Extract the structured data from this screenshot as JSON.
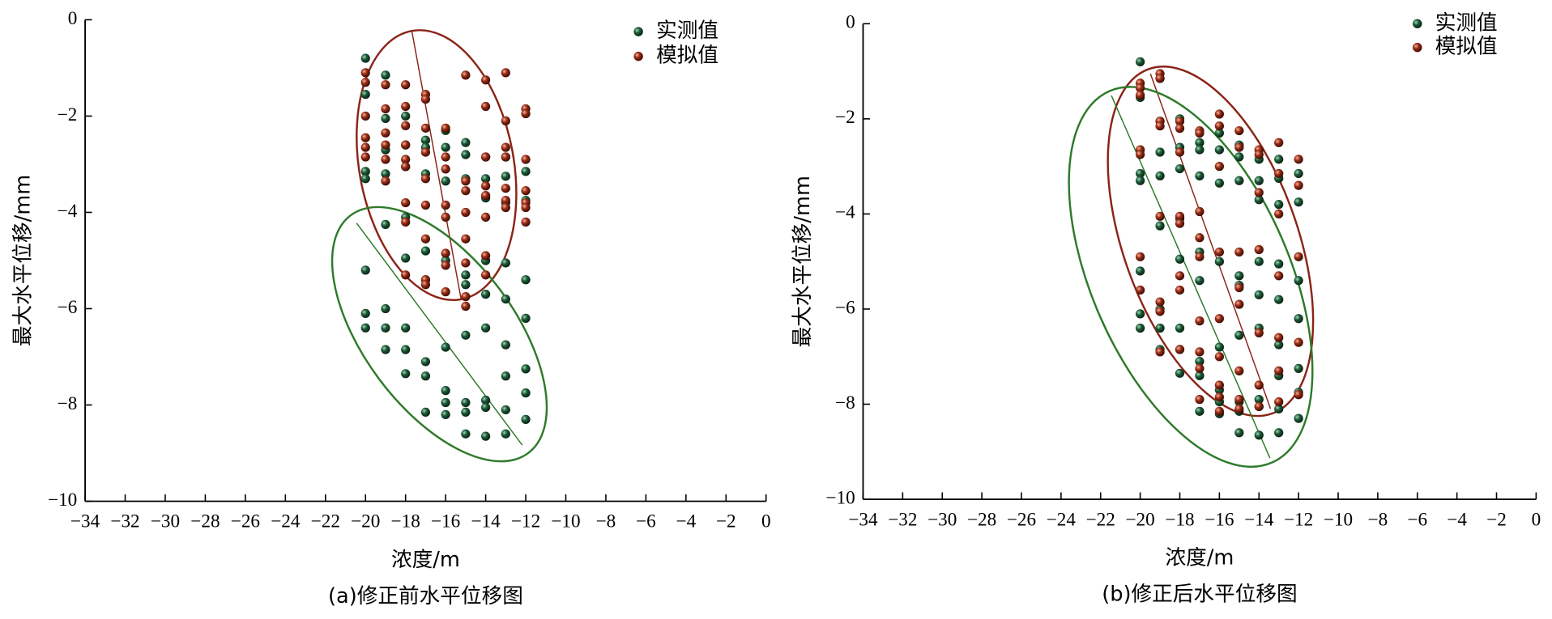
{
  "chart_data": [
    {
      "type": "scatter",
      "x_label": "浓度/m",
      "y_label": "最大水平位移/mm",
      "caption": "(a)修正前水平位移图",
      "legend": "upper right",
      "xlim": [
        -34,
        0
      ],
      "ylim": [
        -10,
        0
      ],
      "xticks": [
        {
          "value": -34,
          "label": "−34"
        },
        {
          "value": -32,
          "label": "−32"
        },
        {
          "value": -30,
          "label": "−30"
        },
        {
          "value": -28,
          "label": "−28"
        },
        {
          "value": -26,
          "label": "−26"
        },
        {
          "value": -24,
          "label": "−24"
        },
        {
          "value": -22,
          "label": "−22"
        },
        {
          "value": -20,
          "label": "−20"
        },
        {
          "value": -18,
          "label": "−18"
        },
        {
          "value": -16,
          "label": "−16"
        },
        {
          "value": -14,
          "label": "−14"
        },
        {
          "value": -12,
          "label": "−12"
        },
        {
          "value": -10,
          "label": "−10"
        },
        {
          "value": -8,
          "label": "−8"
        },
        {
          "value": -6,
          "label": "−6"
        },
        {
          "value": -4,
          "label": "−4"
        },
        {
          "value": -2,
          "label": "−2"
        },
        0
      ],
      "yticks": [
        {
          "value": -10,
          "label": "−10"
        },
        {
          "value": -8,
          "label": "−8"
        },
        {
          "value": -6,
          "label": "−6"
        },
        {
          "value": -4,
          "label": "−4"
        },
        {
          "value": -2,
          "label": "−2"
        },
        0
      ],
      "series": [
        {
          "name": "实测值",
          "color": "#1d5a38",
          "x": [
            -20,
            -20,
            -20,
            -20,
            -20,
            -20,
            -20,
            -19,
            -19,
            -19,
            -19,
            -19,
            -19,
            -19,
            -19,
            -18,
            -18,
            -18,
            -18,
            -18,
            -18,
            -18,
            -18,
            -17,
            -17,
            -17,
            -17,
            -17,
            -17,
            -17,
            -17,
            -16,
            -16,
            -16,
            -16,
            -16,
            -16,
            -16,
            -16,
            -15,
            -15,
            -15,
            -15,
            -15,
            -15,
            -15,
            -15,
            -15,
            -14,
            -14,
            -14,
            -14,
            -14,
            -14,
            -14,
            -14,
            -14,
            -13,
            -13,
            -13,
            -13,
            -13,
            -13,
            -13,
            -13,
            -13,
            -12,
            -12,
            -12,
            -12,
            -12,
            -12,
            -12
          ],
          "y": [
            -0.8,
            -1.55,
            -3.15,
            -3.3,
            -5.2,
            -6.1,
            -6.4,
            -1.15,
            -2.05,
            -2.7,
            -3.2,
            -4.25,
            -6.0,
            -6.4,
            -6.85,
            -2.0,
            -2.6,
            -3.05,
            -4.1,
            -4.95,
            -6.4,
            -6.85,
            -7.35,
            -2.5,
            -2.65,
            -3.2,
            -4.8,
            -5.4,
            -7.1,
            -7.4,
            -8.15,
            -2.3,
            -2.65,
            -3.35,
            -5.0,
            -6.8,
            -7.7,
            -7.95,
            -8.2,
            -2.55,
            -2.8,
            -3.3,
            -5.3,
            -5.5,
            -6.55,
            -7.95,
            -8.15,
            -8.6,
            -2.85,
            -3.3,
            -3.7,
            -5.0,
            -5.7,
            -6.4,
            -7.9,
            -8.05,
            -8.65,
            -2.85,
            -3.25,
            -3.8,
            -5.05,
            -5.8,
            -6.75,
            -7.4,
            -8.1,
            -8.6,
            -3.15,
            -3.75,
            -5.4,
            -6.2,
            -7.25,
            -7.75,
            -8.3
          ]
        },
        {
          "name": "模拟值",
          "color": "#9a2b15",
          "x": [
            -20,
            -20,
            -20,
            -20,
            -20,
            -20,
            -19,
            -19,
            -19,
            -19,
            -19,
            -19,
            -18,
            -18,
            -18,
            -18,
            -18,
            -18,
            -18,
            -18,
            -18,
            -17,
            -17,
            -17,
            -17,
            -17,
            -17,
            -17,
            -17,
            -17,
            -16,
            -16,
            -16,
            -16,
            -16,
            -16,
            -16,
            -16,
            -15,
            -15,
            -15,
            -15,
            -15,
            -15,
            -15,
            -15,
            -14,
            -14,
            -14,
            -14,
            -14,
            -14,
            -14,
            -14,
            -13,
            -13,
            -13,
            -13,
            -13,
            -13,
            -13,
            -12,
            -12,
            -12,
            -12,
            -12,
            -12,
            -12
          ],
          "y": [
            -1.1,
            -1.3,
            -2.0,
            -2.45,
            -2.65,
            -2.85,
            -1.35,
            -1.85,
            -2.35,
            -2.6,
            -2.9,
            -3.35,
            -1.35,
            -1.8,
            -2.2,
            -2.6,
            -2.9,
            -3.05,
            -3.8,
            -4.2,
            -5.3,
            -1.55,
            -1.65,
            -2.25,
            -2.75,
            -3.3,
            -3.85,
            -4.55,
            -5.4,
            -5.5,
            -2.25,
            -2.85,
            -3.1,
            -3.85,
            -4.1,
            -4.85,
            -5.1,
            -5.65,
            -1.15,
            -3.35,
            -3.55,
            -4.0,
            -4.55,
            -5.05,
            -5.75,
            -5.95,
            -1.25,
            -1.8,
            -2.85,
            -3.45,
            -3.65,
            -4.1,
            -4.9,
            -5.3,
            -1.1,
            -2.1,
            -2.65,
            -2.85,
            -3.5,
            -3.75,
            -3.9,
            -1.85,
            -1.95,
            -2.9,
            -3.55,
            -3.8,
            -3.9,
            -4.2
          ]
        }
      ]
    },
    {
      "type": "scatter",
      "x_label": "浓度/m",
      "y_label": "最大水平位移/mm",
      "caption": "(b)修正后水平位移图",
      "legend": "upper right",
      "xlim": [
        -34,
        0
      ],
      "ylim": [
        -10,
        0
      ],
      "xticks": [
        {
          "value": -34,
          "label": "−34"
        },
        {
          "value": -32,
          "label": "−32"
        },
        {
          "value": -30,
          "label": "−30"
        },
        {
          "value": -28,
          "label": "−28"
        },
        {
          "value": -26,
          "label": "−26"
        },
        {
          "value": -24,
          "label": "−24"
        },
        {
          "value": -22,
          "label": "−22"
        },
        {
          "value": -20,
          "label": "−20"
        },
        {
          "value": -18,
          "label": "−18"
        },
        {
          "value": -16,
          "label": "−16"
        },
        {
          "value": -14,
          "label": "−14"
        },
        {
          "value": -12,
          "label": "−12"
        },
        {
          "value": -10,
          "label": "−10"
        },
        {
          "value": -8,
          "label": "−8"
        },
        {
          "value": -6,
          "label": "−6"
        },
        {
          "value": -4,
          "label": "−4"
        },
        {
          "value": -2,
          "label": "−2"
        },
        0
      ],
      "yticks": [
        {
          "value": -10,
          "label": "−10"
        },
        {
          "value": -8,
          "label": "−8"
        },
        {
          "value": -6,
          "label": "−6"
        },
        {
          "value": -4,
          "label": "−4"
        },
        {
          "value": -2,
          "label": "−2"
        },
        0
      ],
      "series": [
        {
          "name": "实测值",
          "color": "#1d5a38",
          "x": [
            -20,
            -20,
            -20,
            -20,
            -20,
            -20,
            -20,
            -19,
            -19,
            -19,
            -19,
            -19,
            -19,
            -19,
            -19,
            -18,
            -18,
            -18,
            -18,
            -18,
            -18,
            -18,
            -18,
            -17,
            -17,
            -17,
            -17,
            -17,
            -17,
            -17,
            -17,
            -16,
            -16,
            -16,
            -16,
            -16,
            -16,
            -16,
            -16,
            -15,
            -15,
            -15,
            -15,
            -15,
            -15,
            -15,
            -15,
            -15,
            -14,
            -14,
            -14,
            -14,
            -14,
            -14,
            -14,
            -14,
            -14,
            -13,
            -13,
            -13,
            -13,
            -13,
            -13,
            -13,
            -13,
            -13,
            -12,
            -12,
            -12,
            -12,
            -12,
            -12,
            -12
          ],
          "y": [
            -0.8,
            -1.55,
            -3.15,
            -3.3,
            -5.2,
            -6.1,
            -6.4,
            -1.15,
            -2.05,
            -2.7,
            -3.2,
            -4.25,
            -6.0,
            -6.4,
            -6.85,
            -2.0,
            -2.6,
            -3.05,
            -4.1,
            -4.95,
            -6.4,
            -6.85,
            -7.35,
            -2.5,
            -2.65,
            -3.2,
            -4.8,
            -5.4,
            -7.1,
            -7.4,
            -8.15,
            -2.3,
            -2.65,
            -3.35,
            -5.0,
            -6.8,
            -7.7,
            -7.95,
            -8.2,
            -2.55,
            -2.8,
            -3.3,
            -5.3,
            -5.5,
            -6.55,
            -7.95,
            -8.15,
            -8.6,
            -2.85,
            -3.3,
            -3.7,
            -5.0,
            -5.7,
            -6.4,
            -7.9,
            -8.05,
            -8.65,
            -2.85,
            -3.25,
            -3.8,
            -5.05,
            -5.8,
            -6.75,
            -7.4,
            -8.1,
            -8.6,
            -3.15,
            -3.75,
            -5.4,
            -6.2,
            -7.25,
            -7.75,
            -8.3
          ]
        },
        {
          "name": "模拟值",
          "color": "#9a2b15",
          "x": [
            -20,
            -20,
            -20,
            -20,
            -20,
            -20,
            -20,
            -19,
            -19,
            -19,
            -19,
            -19,
            -19,
            -19,
            -19,
            -18,
            -18,
            -18,
            -18,
            -18,
            -18,
            -18,
            -18,
            -17,
            -17,
            -17,
            -17,
            -17,
            -17,
            -17,
            -17,
            -17,
            -16,
            -16,
            -16,
            -16,
            -16,
            -16,
            -16,
            -16,
            -16,
            -15,
            -15,
            -15,
            -15,
            -15,
            -15,
            -15,
            -15,
            -14,
            -14,
            -14,
            -14,
            -14,
            -14,
            -14,
            -13,
            -13,
            -13,
            -13,
            -13,
            -13,
            -13,
            -12,
            -12,
            -12,
            -12,
            -12
          ],
          "y": [
            -1.25,
            -1.35,
            -1.5,
            -2.65,
            -2.75,
            -4.9,
            -5.6,
            -1.05,
            -1.15,
            -2.05,
            -2.15,
            -4.05,
            -5.85,
            -6.05,
            -6.9,
            -2.05,
            -2.2,
            -2.7,
            -4.05,
            -4.2,
            -5.3,
            -5.6,
            -6.85,
            -2.25,
            -2.3,
            -3.95,
            -4.5,
            -4.9,
            -6.25,
            -6.9,
            -7.25,
            -7.9,
            -1.9,
            -2.15,
            -3.0,
            -4.8,
            -6.2,
            -7.0,
            -7.6,
            -7.85,
            -8.15,
            -2.25,
            -2.6,
            -4.8,
            -5.55,
            -5.9,
            -7.3,
            -7.9,
            -8.1,
            -2.65,
            -2.75,
            -3.55,
            -4.75,
            -6.5,
            -7.6,
            -8.05,
            -2.5,
            -3.15,
            -4.0,
            -5.3,
            -6.6,
            -7.3,
            -7.95,
            -2.85,
            -3.4,
            -4.9,
            -6.7,
            -7.8
          ]
        }
      ]
    }
  ]
}
